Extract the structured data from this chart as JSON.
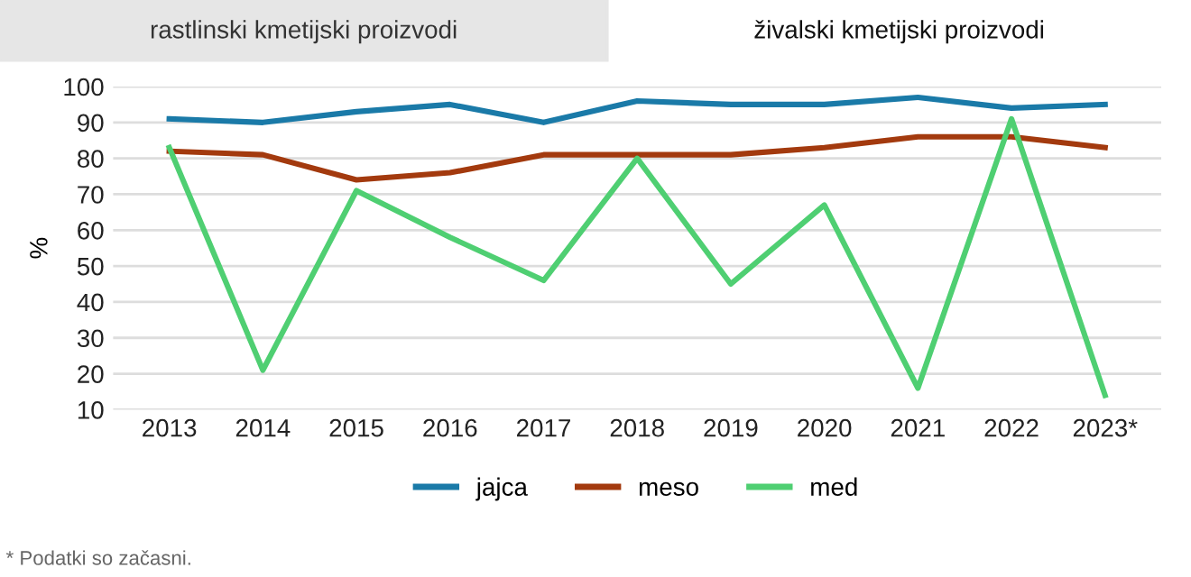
{
  "chart_data": {
    "type": "line",
    "ylabel": "%",
    "categories": [
      "2013",
      "2014",
      "2015",
      "2016",
      "2017",
      "2018",
      "2019",
      "2020",
      "2021",
      "2022",
      "2023*"
    ],
    "series": [
      {
        "name": "jajca",
        "color": "#1a7aa8",
        "values": [
          91,
          90,
          93,
          95,
          90,
          96,
          95,
          95,
          97,
          94,
          95
        ]
      },
      {
        "name": "meso",
        "color": "#a33a0e",
        "values": [
          82,
          81,
          74,
          76,
          81,
          81,
          81,
          83,
          86,
          86,
          83
        ]
      },
      {
        "name": "med",
        "color": "#4fcf72",
        "values": [
          83,
          21,
          71,
          58,
          46,
          80,
          45,
          67,
          16,
          91,
          14
        ]
      }
    ],
    "ylim": [
      10,
      100
    ],
    "yticks": [
      10,
      20,
      30,
      40,
      50,
      60,
      70,
      80,
      90,
      100
    ],
    "grid": "y",
    "legend": "bottom",
    "marker": "none",
    "line_style": "solid",
    "annotations": [
      "rastlinski kmetijski proizvodi",
      "živalski kmetijski proizvodi",
      "* Podatki so začasni."
    ]
  }
}
